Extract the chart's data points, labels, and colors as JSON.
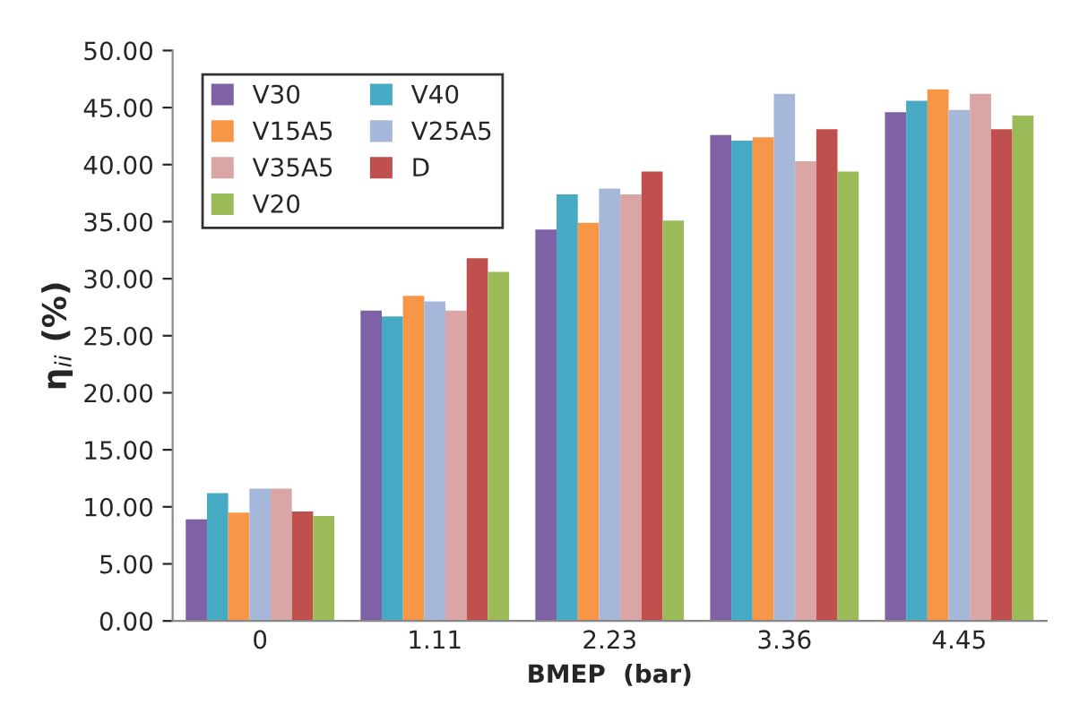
{
  "chart_data": {
    "type": "bar",
    "xlabel": "BMEP  (bar)",
    "ylabel": "η$_{ii}$ (%)",
    "categories": [
      "0",
      "1.11",
      "2.23",
      "3.36",
      "4.45"
    ],
    "series": [
      {
        "name": "V30",
        "color": "#7f62a6",
        "values": [
          8.9,
          27.2,
          34.3,
          42.6,
          44.6
        ]
      },
      {
        "name": "V40",
        "color": "#46aac5",
        "values": [
          11.2,
          26.7,
          37.4,
          42.1,
          45.6
        ]
      },
      {
        "name": "V15A5",
        "color": "#f79646",
        "values": [
          9.5,
          28.5,
          34.9,
          42.4,
          46.6
        ]
      },
      {
        "name": "V25A5",
        "color": "#a6b8d9",
        "values": [
          11.6,
          28.0,
          37.9,
          46.2,
          44.8
        ]
      },
      {
        "name": "V35A5",
        "color": "#d9a5a5",
        "values": [
          11.6,
          27.2,
          37.4,
          40.3,
          46.2
        ]
      },
      {
        "name": "D",
        "color": "#c0504d",
        "values": [
          9.6,
          31.8,
          39.4,
          43.1,
          43.1
        ]
      },
      {
        "name": "V20",
        "color": "#9bbb59",
        "values": [
          9.2,
          30.6,
          35.1,
          39.4,
          44.3
        ]
      }
    ],
    "ylim": [
      0,
      50
    ],
    "yticks": [
      {
        "value": 0,
        "label": "0.00"
      },
      {
        "value": 5,
        "label": "5.00"
      },
      {
        "value": 10,
        "label": "10.00"
      },
      {
        "value": 15,
        "label": "15.00"
      },
      {
        "value": 20,
        "label": "20.00"
      },
      {
        "value": 25,
        "label": "25.00"
      },
      {
        "value": 30,
        "label": "30.00"
      },
      {
        "value": 35,
        "label": "35.00"
      },
      {
        "value": 40,
        "label": "40.00"
      },
      {
        "value": 45,
        "label": "45.00"
      },
      {
        "value": 50,
        "label": "50.00"
      }
    ],
    "grid": false,
    "legend": "top left"
  }
}
